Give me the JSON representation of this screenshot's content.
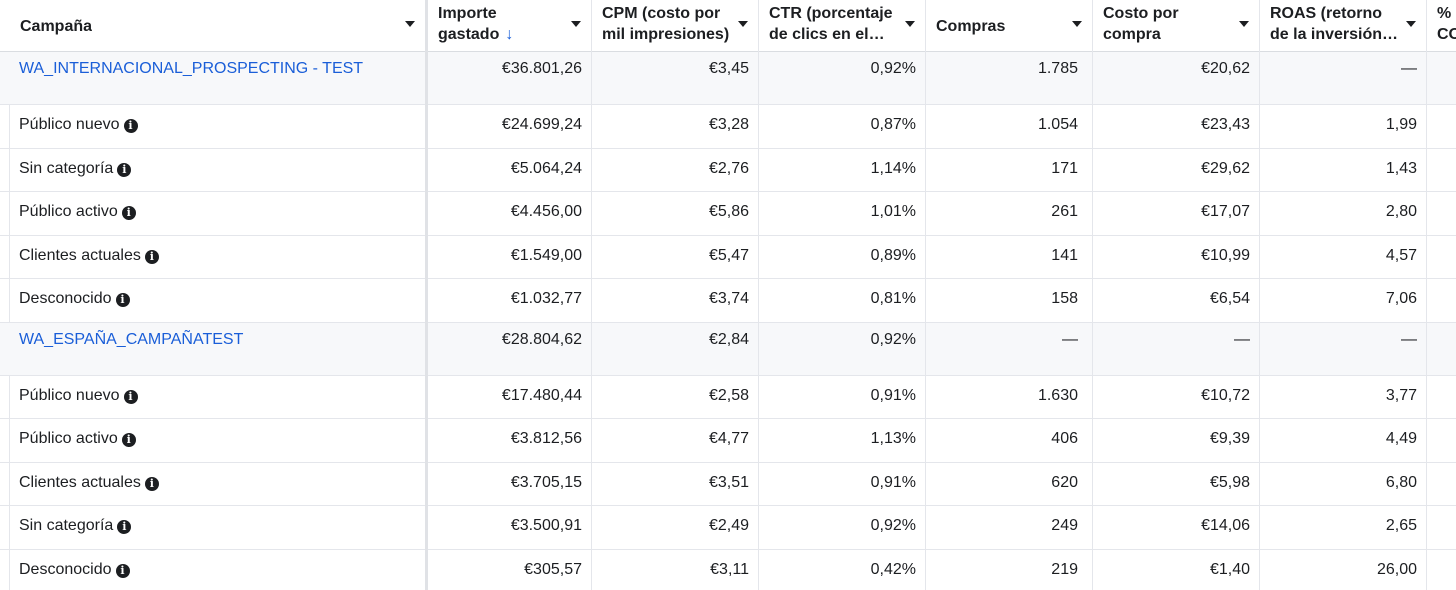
{
  "headers": {
    "campaign": "Campaña",
    "spend_line1": "Importe",
    "spend_line2": "gastado",
    "spend_sort": "↓",
    "cpm_line1": "CPM (costo por",
    "cpm_line2": "mil impresiones)",
    "ctr_line1": "CTR (porcentaje",
    "ctr_line2": "de clics en el…",
    "purchases": "Compras",
    "cpp_line1": "Costo por",
    "cpp_line2": "compra",
    "roas_line1": "ROAS (retorno",
    "roas_line2": "de la inversión…",
    "extra_line1": "%",
    "extra_line2": "CO"
  },
  "rows": [
    {
      "type": "campaign",
      "name": "WA_INTERNACIONAL_PROSPECTING - TEST",
      "spend": "€36.801,26",
      "cpm": "€3,45",
      "ctr": "0,92%",
      "purchases": "1.785",
      "cpp": "€20,62",
      "roas": "—"
    },
    {
      "type": "sub",
      "name": "Público nuevo",
      "spend": "€24.699,24",
      "cpm": "€3,28",
      "ctr": "0,87%",
      "purchases": "1.054",
      "cpp": "€23,43",
      "roas": "1,99"
    },
    {
      "type": "sub",
      "name": "Sin categoría",
      "spend": "€5.064,24",
      "cpm": "€2,76",
      "ctr": "1,14%",
      "purchases": "171",
      "cpp": "€29,62",
      "roas": "1,43"
    },
    {
      "type": "sub",
      "name": "Público activo",
      "spend": "€4.456,00",
      "cpm": "€5,86",
      "ctr": "1,01%",
      "purchases": "261",
      "cpp": "€17,07",
      "roas": "2,80"
    },
    {
      "type": "sub",
      "name": "Clientes actuales",
      "spend": "€1.549,00",
      "cpm": "€5,47",
      "ctr": "0,89%",
      "purchases": "141",
      "cpp": "€10,99",
      "roas": "4,57"
    },
    {
      "type": "sub",
      "name": "Desconocido",
      "spend": "€1.032,77",
      "cpm": "€3,74",
      "ctr": "0,81%",
      "purchases": "158",
      "cpp": "€6,54",
      "roas": "7,06"
    },
    {
      "type": "campaign",
      "name": "WA_ESPAÑA_CAMPAÑATEST",
      "spend": "€28.804,62",
      "cpm": "€2,84",
      "ctr": "0,92%",
      "purchases": "—",
      "cpp": "—",
      "roas": "—"
    },
    {
      "type": "sub",
      "name": "Público nuevo",
      "spend": "€17.480,44",
      "cpm": "€2,58",
      "ctr": "0,91%",
      "purchases": "1.630",
      "cpp": "€10,72",
      "roas": "3,77"
    },
    {
      "type": "sub",
      "name": "Público activo",
      "spend": "€3.812,56",
      "cpm": "€4,77",
      "ctr": "1,13%",
      "purchases": "406",
      "cpp": "€9,39",
      "roas": "4,49"
    },
    {
      "type": "sub",
      "name": "Clientes actuales",
      "spend": "€3.705,15",
      "cpm": "€3,51",
      "ctr": "0,91%",
      "purchases": "620",
      "cpp": "€5,98",
      "roas": "6,80"
    },
    {
      "type": "sub",
      "name": "Sin categoría",
      "spend": "€3.500,91",
      "cpm": "€2,49",
      "ctr": "0,92%",
      "purchases": "249",
      "cpp": "€14,06",
      "roas": "2,65"
    },
    {
      "type": "sub",
      "name": "Desconocido",
      "spend": "€305,57",
      "cpm": "€3,11",
      "ctr": "0,42%",
      "purchases": "219",
      "cpp": "€1,40",
      "roas": "26,00"
    }
  ],
  "info_icon": {
    "glyph": "i",
    "name": "info-icon"
  },
  "colors": {
    "link": "#1a5ed8",
    "campaign_row_bg": "#f7f8fa",
    "border": "#e4e6eb"
  }
}
